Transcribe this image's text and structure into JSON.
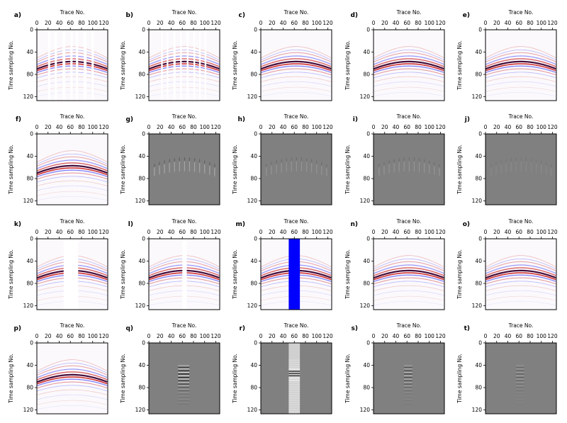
{
  "figure": {
    "panel_labels": [
      "a)",
      "b)",
      "c)",
      "d)",
      "e)",
      "f)",
      "g)",
      "h)",
      "i)",
      "j)",
      "k)",
      "l)",
      "m)",
      "n)",
      "o)",
      "p)",
      "q)",
      "r)",
      "s)",
      "t)"
    ]
  },
  "chart_data": {
    "type": "heatmap",
    "layout": "4x5 grid",
    "xlabel": "Trace No.",
    "ylabel": "Time sampling No.",
    "x_ticks": [
      0,
      20,
      40,
      60,
      80,
      100,
      120
    ],
    "y_ticks": [
      0,
      40,
      80,
      120
    ],
    "xlim": [
      0,
      127
    ],
    "ylim": [
      127,
      0
    ],
    "colors": {
      "seismic_red": "#c40000",
      "seismic_blue": "#2020ff",
      "seismic_dark": "#3a0030",
      "residual_gray": "#808080",
      "mask_blue": "#0000ff"
    },
    "panels": [
      {
        "label": "a)",
        "kind": "seismic",
        "gaps": [
          [
            20,
            24
          ],
          [
            32,
            36
          ],
          [
            46,
            51
          ],
          [
            60,
            64
          ],
          [
            70,
            74
          ],
          [
            84,
            89
          ],
          [
            98,
            102
          ]
        ]
      },
      {
        "label": "b)",
        "kind": "seismic",
        "gaps": [
          [
            22,
            25
          ],
          [
            32,
            35
          ],
          [
            44,
            48
          ],
          [
            56,
            59
          ],
          [
            68,
            71
          ],
          [
            80,
            83
          ],
          [
            90,
            93
          ],
          [
            100,
            103
          ]
        ]
      },
      {
        "label": "c)",
        "kind": "seismic",
        "gaps": []
      },
      {
        "label": "d)",
        "kind": "seismic",
        "gaps": []
      },
      {
        "label": "e)",
        "kind": "seismic",
        "gaps": []
      },
      {
        "label": "f)",
        "kind": "seismic",
        "gaps": []
      },
      {
        "label": "g)",
        "kind": "residual",
        "level": "medium"
      },
      {
        "label": "h)",
        "kind": "residual",
        "level": "weak"
      },
      {
        "label": "i)",
        "kind": "residual",
        "level": "weak"
      },
      {
        "label": "j)",
        "kind": "residual",
        "level": "very weak"
      },
      {
        "label": "k)",
        "kind": "seismic",
        "gaps": [
          [
            48,
            74
          ]
        ]
      },
      {
        "label": "l)",
        "kind": "seismic",
        "gaps": [
          [
            60,
            68
          ]
        ]
      },
      {
        "label": "m)",
        "kind": "seismic_masked",
        "mask": [
          50,
          70
        ]
      },
      {
        "label": "n)",
        "kind": "seismic",
        "gaps": []
      },
      {
        "label": "o)",
        "kind": "seismic",
        "gaps": []
      },
      {
        "label": "p)",
        "kind": "seismic",
        "gaps": []
      },
      {
        "label": "q)",
        "kind": "residual_local",
        "band": [
          50,
          75
        ],
        "level": "strong"
      },
      {
        "label": "r)",
        "kind": "residual_band",
        "band": [
          50,
          70
        ]
      },
      {
        "label": "s)",
        "kind": "residual_local",
        "band": [
          52,
          72
        ],
        "level": "medium"
      },
      {
        "label": "t)",
        "kind": "residual_local",
        "band": [
          52,
          72
        ],
        "level": "weak"
      }
    ]
  }
}
